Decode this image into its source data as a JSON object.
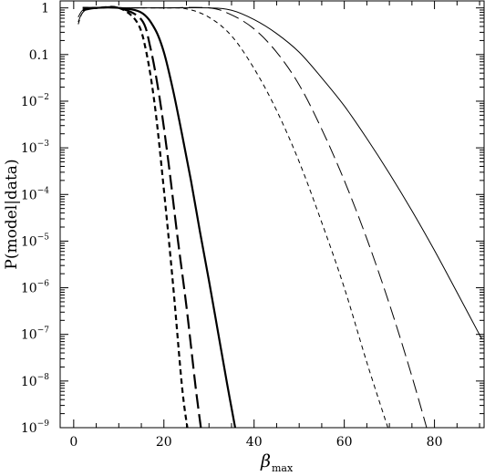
{
  "chart_data": {
    "type": "line",
    "title": "",
    "ylabel": "P(model|data)",
    "xlabel": {
      "symbol": "β",
      "subscript": "max"
    },
    "xlim": [
      -3,
      91
    ],
    "ylim_log10": [
      -9,
      0.15
    ],
    "yscale": "log",
    "grid": false,
    "legend": "none",
    "x_ticks": [
      {
        "value": 0,
        "label": "0"
      },
      {
        "value": 20,
        "label": "20"
      },
      {
        "value": 40,
        "label": "40"
      },
      {
        "value": 60,
        "label": "60"
      },
      {
        "value": 80,
        "label": "80"
      }
    ],
    "y_ticks": [
      {
        "exp": 0,
        "base": "1",
        "sup": ""
      },
      {
        "exp": -1,
        "base": "0.1",
        "sup": ""
      },
      {
        "exp": -2,
        "base": "10",
        "sup": "−2"
      },
      {
        "exp": -3,
        "base": "10",
        "sup": "−3"
      },
      {
        "exp": -4,
        "base": "10",
        "sup": "−4"
      },
      {
        "exp": -5,
        "base": "10",
        "sup": "−5"
      },
      {
        "exp": -6,
        "base": "10",
        "sup": "−6"
      },
      {
        "exp": -7,
        "base": "10",
        "sup": "−7"
      },
      {
        "exp": -8,
        "base": "10",
        "sup": "−8"
      },
      {
        "exp": -9,
        "base": "10",
        "sup": "−9"
      }
    ],
    "series": [
      {
        "style": "thick-short-dash",
        "x": [
          2,
          5,
          10,
          14,
          16,
          18,
          20,
          22,
          24,
          25.2
        ],
        "log10y": [
          0,
          0,
          0,
          -0.3,
          -0.9,
          -2.1,
          -3.9,
          -5.9,
          -8.1,
          -9
        ]
      },
      {
        "style": "thick-long-dash",
        "x": [
          2,
          5,
          10,
          15,
          17,
          19,
          21,
          23,
          25,
          27,
          28.2
        ],
        "log10y": [
          0,
          0,
          0,
          -0.25,
          -0.85,
          -1.9,
          -3.3,
          -4.9,
          -6.4,
          -8.1,
          -9
        ]
      },
      {
        "style": "thick-solid",
        "x": [
          2,
          5,
          10,
          15,
          18,
          20,
          22,
          24,
          26,
          28,
          30,
          32,
          34,
          35.8
        ],
        "log10y": [
          -0.05,
          0,
          0,
          -0.1,
          -0.45,
          -0.95,
          -1.75,
          -2.7,
          -3.7,
          -4.8,
          -5.85,
          -6.95,
          -8.05,
          -9
        ]
      },
      {
        "style": "thin-short-dash",
        "x": [
          1,
          2,
          4,
          10,
          20,
          25,
          30,
          35,
          40,
          45,
          50,
          55,
          60,
          65,
          70
        ],
        "log10y": [
          -0.35,
          -0.1,
          0,
          0,
          0,
          -0.02,
          -0.2,
          -0.6,
          -1.3,
          -2.2,
          -3.3,
          -4.6,
          -6.0,
          -7.6,
          -9.1
        ]
      },
      {
        "style": "thin-long-dash",
        "x": [
          1,
          2,
          4,
          10,
          20,
          30,
          35,
          40,
          45,
          50,
          55,
          60,
          65,
          70,
          75,
          80
        ],
        "log10y": [
          -0.2,
          -0.05,
          0,
          0,
          0,
          0,
          -0.15,
          -0.45,
          -0.95,
          -1.65,
          -2.6,
          -3.7,
          -4.95,
          -6.35,
          -7.9,
          -9.6
        ]
      },
      {
        "style": "thin-solid",
        "x": [
          1,
          2,
          4,
          10,
          20,
          30,
          35,
          40,
          45,
          50,
          55,
          60,
          65,
          70,
          75,
          80,
          85,
          90.5
        ],
        "log10y": [
          -0.3,
          -0.1,
          0,
          0,
          0,
          0,
          -0.05,
          -0.25,
          -0.55,
          -0.95,
          -1.5,
          -2.1,
          -2.8,
          -3.55,
          -4.35,
          -5.2,
          -6.1,
          -7.1
        ]
      }
    ]
  }
}
